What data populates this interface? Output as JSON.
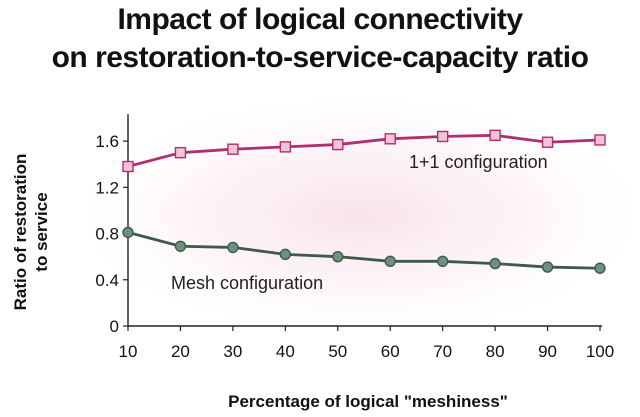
{
  "chart_data": {
    "type": "line",
    "title": [
      "Impact of logical connectivity",
      "on restoration-to-service-capacity ratio"
    ],
    "xlabel": "Percentage of logical \"meshiness\"",
    "ylabel": [
      "Ratio of restoration",
      "to service"
    ],
    "x": [
      10,
      20,
      30,
      40,
      50,
      60,
      70,
      80,
      90,
      100
    ],
    "x_ticks": [
      "10",
      "20",
      "30",
      "40",
      "50",
      "60",
      "70",
      "80",
      "90",
      "100"
    ],
    "xlim": [
      10,
      100
    ],
    "y_ticks": [
      "0",
      "0.4",
      "0.8",
      "1.2",
      "1.6"
    ],
    "y_tick_values": [
      0,
      0.4,
      0.8,
      1.2,
      1.6
    ],
    "ylim": [
      0,
      1.8
    ],
    "grid": false,
    "series": [
      {
        "name": "1+1 configuration",
        "marker": "square",
        "color": "#b0306e",
        "marker_fill": "#f2c4da",
        "values": [
          1.38,
          1.5,
          1.53,
          1.55,
          1.57,
          1.62,
          1.64,
          1.65,
          1.59,
          1.61
        ]
      },
      {
        "name": "Mesh configuration",
        "marker": "circle",
        "color": "#3d5a4b",
        "marker_fill": "#6f8f7f",
        "values": [
          0.81,
          0.69,
          0.68,
          0.62,
          0.6,
          0.56,
          0.56,
          0.54,
          0.51,
          0.5
        ]
      }
    ],
    "background_glow": "#f6d9e6"
  }
}
